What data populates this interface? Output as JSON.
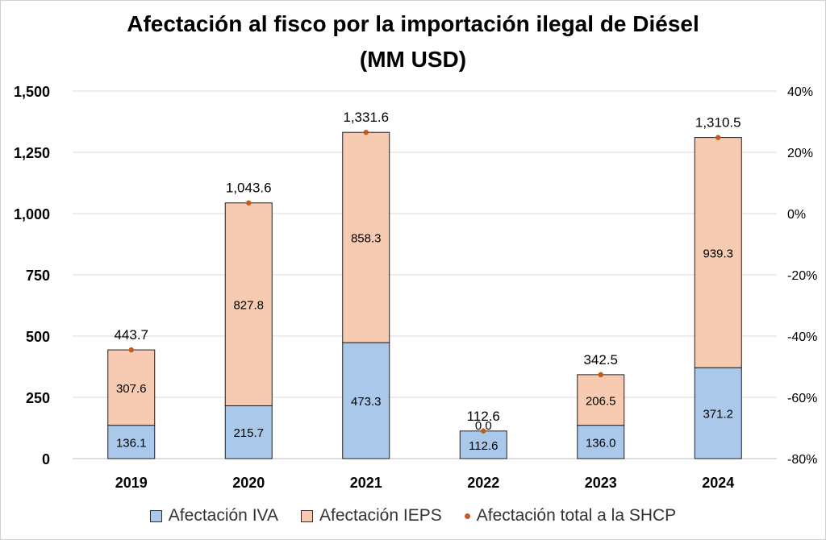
{
  "chart_data": {
    "type": "bar",
    "stacked": true,
    "title": "Afectación al fisco por la importación ilegal de Diésel",
    "subtitle": "(MM USD)",
    "categories": [
      "2019",
      "2020",
      "2021",
      "2022",
      "2023",
      "2024"
    ],
    "series": [
      {
        "name": "Afectación IVA",
        "values": [
          136.1,
          215.7,
          473.3,
          112.6,
          136.0,
          371.2
        ],
        "labels": [
          "136.1",
          "215.7",
          "473.3",
          "112.6",
          "136.0",
          "371.2"
        ],
        "color": "#a9c8ea"
      },
      {
        "name": "Afectación IEPS",
        "values": [
          307.6,
          827.8,
          858.3,
          0.0,
          206.5,
          939.3
        ],
        "labels": [
          "307.6",
          "827.8",
          "858.3",
          "0.0",
          "206.5",
          "939.3"
        ],
        "color": "#f6cbb1"
      },
      {
        "name": "Afectación total a la SHCP",
        "type": "scatter",
        "values": [
          443.7,
          1043.6,
          1331.6,
          112.6,
          342.5,
          1310.5
        ],
        "labels": [
          "443.7",
          "1,043.6",
          "1,331.6",
          "112.6",
          "342.5",
          "1,310.5"
        ],
        "color": "#c65a1e"
      }
    ],
    "ylim": [
      0,
      1500
    ],
    "yticks": [
      "0",
      "250",
      "500",
      "750",
      "1,000",
      "1,250",
      "1,500"
    ],
    "y2lim": [
      -80,
      40
    ],
    "y2ticks": [
      "-80%",
      "-60%",
      "-40%",
      "-20%",
      "0%",
      "20%",
      "40%"
    ],
    "grid": true,
    "legend_position": "bottom"
  }
}
